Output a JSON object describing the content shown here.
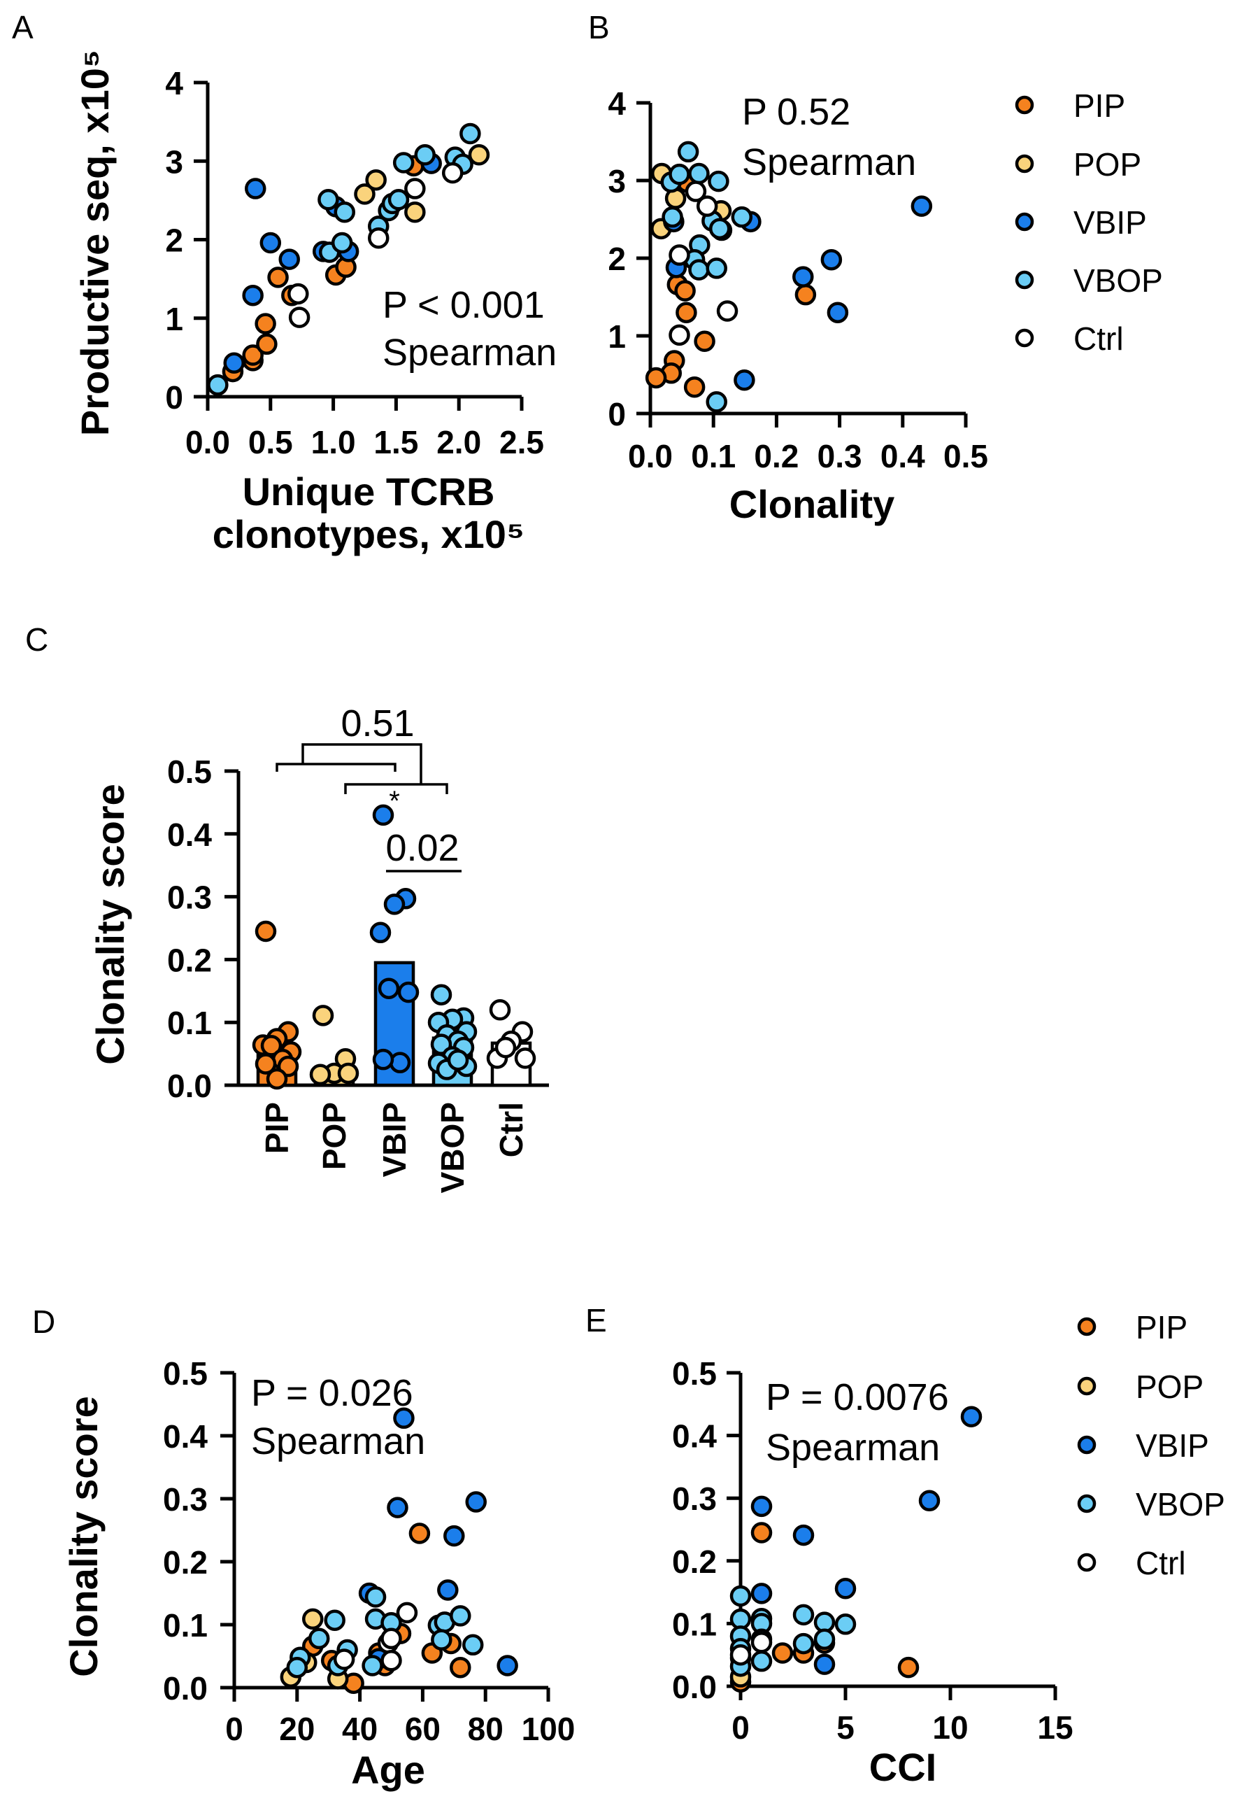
{
  "colors": {
    "PIP": "#F5821F",
    "POP": "#FAD37C",
    "VBIP": "#1B7EEB",
    "VBOP": "#6BCDF5",
    "Ctrl": "#FFFFFF"
  },
  "chart_data": [
    {
      "panel": "A",
      "type": "scatter",
      "xlabel": [
        "Unique TCRB",
        "clonotypes, x10⁵"
      ],
      "ylabel": "Productive seq, x10⁵",
      "xlim": [
        0,
        2.5
      ],
      "ylim": [
        0,
        4
      ],
      "xticks": [
        "0.0",
        "0.5",
        "1.0",
        "1.5",
        "2.0",
        "2.5"
      ],
      "yticks": [
        "0",
        "1",
        "2",
        "3",
        "4"
      ],
      "annotation": [
        "P < 0.001",
        "Spearman"
      ],
      "series": [
        {
          "name": "PIP",
          "points": [
            [
              0.2,
              0.32
            ],
            [
              0.36,
              0.46
            ],
            [
              0.36,
              0.53
            ],
            [
              0.46,
              0.93
            ],
            [
              0.47,
              0.67
            ],
            [
              0.56,
              1.52
            ],
            [
              0.67,
              1.29
            ],
            [
              1.02,
              1.55
            ],
            [
              1.1,
              1.65
            ],
            [
              1.64,
              2.94
            ]
          ]
        },
        {
          "name": "POP",
          "points": [
            [
              1.25,
              2.58
            ],
            [
              1.34,
              2.76
            ],
            [
              1.65,
              2.35
            ],
            [
              2.16,
              3.08
            ]
          ]
        },
        {
          "name": "VBIP",
          "points": [
            [
              0.21,
              0.43
            ],
            [
              0.38,
              2.65
            ],
            [
              0.36,
              1.29
            ],
            [
              0.5,
              1.96
            ],
            [
              0.65,
              1.75
            ],
            [
              0.92,
              1.85
            ],
            [
              1.02,
              2.42
            ],
            [
              1.12,
              1.85
            ],
            [
              1.78,
              2.97
            ]
          ]
        },
        {
          "name": "VBOP",
          "points": [
            [
              0.08,
              0.15
            ],
            [
              0.97,
              1.84
            ],
            [
              0.96,
              2.51
            ],
            [
              1.09,
              2.35
            ],
            [
              1.07,
              1.96
            ],
            [
              1.36,
              2.17
            ],
            [
              1.44,
              2.37
            ],
            [
              1.47,
              2.46
            ],
            [
              1.52,
              2.51
            ],
            [
              1.56,
              2.98
            ],
            [
              1.73,
              3.08
            ],
            [
              1.97,
              3.05
            ],
            [
              2.03,
              2.96
            ],
            [
              2.09,
              3.35
            ]
          ]
        },
        {
          "name": "Ctrl",
          "points": [
            [
              0.72,
              1.31
            ],
            [
              0.73,
              1.01
            ],
            [
              1.36,
              2.02
            ],
            [
              1.65,
              2.65
            ],
            [
              1.95,
              2.85
            ]
          ]
        }
      ]
    },
    {
      "panel": "B",
      "type": "scatter",
      "xlabel": [
        "Clonality"
      ],
      "ylabel": "",
      "xlim": [
        0,
        0.5
      ],
      "ylim": [
        0,
        4
      ],
      "xticks": [
        "0.0",
        "0.1",
        "0.2",
        "0.3",
        "0.4",
        "0.5"
      ],
      "yticks": [
        "0",
        "1",
        "2",
        "3",
        "4"
      ],
      "annotation": [
        "P 0.52",
        "Spearman"
      ],
      "legend": {
        "placement": "right",
        "items": [
          "PIP",
          "POP",
          "VBIP",
          "VBOP",
          "Ctrl"
        ]
      },
      "series": [
        {
          "name": "PIP",
          "points": [
            [
              0.058,
              2.98
            ],
            [
              0.043,
              1.66
            ],
            [
              0.055,
              1.58
            ],
            [
              0.057,
              1.3
            ],
            [
              0.086,
              0.93
            ],
            [
              0.038,
              0.68
            ],
            [
              0.033,
              0.52
            ],
            [
              0.009,
              0.46
            ],
            [
              0.07,
              0.34
            ],
            [
              0.246,
              1.53
            ]
          ]
        },
        {
          "name": "POP",
          "points": [
            [
              0.018,
              3.09
            ],
            [
              0.04,
              2.77
            ],
            [
              0.112,
              2.61
            ],
            [
              0.017,
              2.38
            ]
          ]
        },
        {
          "name": "VBIP",
          "points": [
            [
              0.159,
              2.47
            ],
            [
              0.037,
              2.47
            ],
            [
              0.041,
              1.88
            ],
            [
              0.149,
              0.43
            ],
            [
              0.43,
              2.67
            ],
            [
              0.287,
              1.98
            ],
            [
              0.242,
              1.76
            ],
            [
              0.297,
              1.3
            ],
            [
              0.113,
              2.36
            ]
          ]
        },
        {
          "name": "VBOP",
          "points": [
            [
              0.033,
              2.98
            ],
            [
              0.046,
              3.08
            ],
            [
              0.06,
              3.37
            ],
            [
              0.077,
              3.09
            ],
            [
              0.108,
              2.99
            ],
            [
              0.098,
              2.48
            ],
            [
              0.11,
              2.38
            ],
            [
              0.145,
              2.53
            ],
            [
              0.035,
              2.53
            ],
            [
              0.078,
              2.17
            ],
            [
              0.07,
              1.98
            ],
            [
              0.077,
              1.85
            ],
            [
              0.105,
              1.87
            ],
            [
              0.105,
              0.15
            ]
          ]
        },
        {
          "name": "Ctrl",
          "points": [
            [
              0.072,
              2.86
            ],
            [
              0.09,
              2.67
            ],
            [
              0.046,
              2.04
            ],
            [
              0.122,
              1.32
            ],
            [
              0.046,
              1.01
            ]
          ]
        }
      ]
    },
    {
      "panel": "C",
      "type": "bar",
      "ylabel": "Clonality score",
      "ylim": [
        0,
        0.5
      ],
      "yticks": [
        "0.0",
        "0.1",
        "0.2",
        "0.3",
        "0.4",
        "0.5"
      ],
      "categories": [
        "PIP",
        "POP",
        "VBIP",
        "VBOP",
        "Ctrl"
      ],
      "values": [
        0.06,
        0.02,
        0.195,
        0.075,
        0.067
      ],
      "points": [
        [
          0.245,
          0.085,
          0.074,
          0.064,
          0.053,
          0.063,
          0.041,
          0.034,
          0.03,
          0.01
        ],
        [
          0.111,
          0.042,
          0.019,
          0.017,
          0.019
        ],
        [
          0.43,
          0.297,
          0.288,
          0.243,
          0.148,
          0.154,
          0.036,
          0.041
        ],
        [
          0.144,
          0.107,
          0.105,
          0.1,
          0.085,
          0.08,
          0.07,
          0.065,
          0.06,
          0.045,
          0.035,
          0.03,
          0.025,
          0.04
        ],
        [
          0.12,
          0.085,
          0.07,
          0.043,
          0.043,
          0.06
        ]
      ],
      "comparisons": [
        {
          "label": "0.51",
          "between": "PIP+POP vs VBIP+VBOP"
        },
        {
          "label": "*",
          "between": "VBIP outlier"
        },
        {
          "label": "0.02",
          "between": "VBIP vs VBOP"
        }
      ]
    },
    {
      "panel": "D",
      "type": "scatter",
      "xlabel": [
        "Age"
      ],
      "ylabel": "Clonality score",
      "xlim": [
        0,
        100
      ],
      "ylim": [
        0,
        0.5
      ],
      "xticks": [
        "0",
        "20",
        "40",
        "60",
        "80",
        "100"
      ],
      "yticks": [
        "0.0",
        "0.1",
        "0.2",
        "0.3",
        "0.4",
        "0.5"
      ],
      "annotation": [
        "P = 0.026",
        "Spearman"
      ],
      "series": [
        {
          "name": "PIP",
          "points": [
            [
              59,
              0.245
            ],
            [
              25,
              0.066
            ],
            [
              31,
              0.043
            ],
            [
              38,
              0.007
            ],
            [
              46,
              0.055
            ],
            [
              53,
              0.086
            ],
            [
              63,
              0.055
            ],
            [
              69,
              0.07
            ],
            [
              72,
              0.032
            ],
            [
              48,
              0.035
            ]
          ]
        },
        {
          "name": "POP",
          "points": [
            [
              25,
              0.109
            ],
            [
              23,
              0.04
            ],
            [
              18,
              0.017
            ],
            [
              33,
              0.014
            ]
          ]
        },
        {
          "name": "VBIP",
          "points": [
            [
              54,
              0.428
            ],
            [
              52,
              0.286
            ],
            [
              77,
              0.295
            ],
            [
              70,
              0.241
            ],
            [
              68,
              0.155
            ],
            [
              87,
              0.035
            ],
            [
              43,
              0.15
            ],
            [
              46,
              0.046
            ]
          ]
        },
        {
          "name": "VBOP",
          "points": [
            [
              21,
              0.048
            ],
            [
              20,
              0.032
            ],
            [
              27,
              0.078
            ],
            [
              32,
              0.107
            ],
            [
              36,
              0.06
            ],
            [
              33,
              0.035
            ],
            [
              45,
              0.144
            ],
            [
              45,
              0.109
            ],
            [
              50,
              0.103
            ],
            [
              44,
              0.035
            ],
            [
              65,
              0.099
            ],
            [
              67,
              0.104
            ],
            [
              66,
              0.076
            ],
            [
              72,
              0.114
            ],
            [
              76,
              0.068
            ]
          ]
        },
        {
          "name": "Ctrl",
          "points": [
            [
              55,
              0.119
            ],
            [
              49,
              0.071
            ],
            [
              50,
              0.043
            ],
            [
              35,
              0.045
            ],
            [
              50,
              0.078
            ]
          ]
        }
      ]
    },
    {
      "panel": "E",
      "type": "scatter",
      "xlabel": [
        "CCI"
      ],
      "ylabel": "",
      "xlim": [
        0,
        15
      ],
      "ylim": [
        0,
        0.5
      ],
      "xticks": [
        "0",
        "5",
        "10",
        "15"
      ],
      "yticks": [
        "0.0",
        "0.1",
        "0.2",
        "0.3",
        "0.4",
        "0.5"
      ],
      "annotation": [
        "P = 0.0076",
        "Spearman"
      ],
      "legend": {
        "placement": "right",
        "items": [
          "PIP",
          "POP",
          "VBIP",
          "VBOP",
          "Ctrl"
        ]
      },
      "series": [
        {
          "name": "PIP",
          "points": [
            [
              1,
              0.245
            ],
            [
              2,
              0.053
            ],
            [
              3,
              0.053
            ],
            [
              8,
              0.03
            ],
            [
              4,
              0.069
            ],
            [
              0,
              0.007
            ]
          ]
        },
        {
          "name": "POP",
          "points": [
            [
              0,
              0.015
            ]
          ]
        },
        {
          "name": "VBIP",
          "points": [
            [
              11,
              0.43
            ],
            [
              9,
              0.296
            ],
            [
              1,
              0.287
            ],
            [
              3,
              0.241
            ],
            [
              1,
              0.148
            ],
            [
              5,
              0.156
            ],
            [
              4,
              0.035
            ]
          ]
        },
        {
          "name": "VBOP",
          "points": [
            [
              0,
              0.144
            ],
            [
              0,
              0.107
            ],
            [
              0,
              0.08
            ],
            [
              0,
              0.06
            ],
            [
              0,
              0.045
            ],
            [
              0,
              0.032
            ],
            [
              1,
              0.108
            ],
            [
              1,
              0.1
            ],
            [
              1,
              0.075
            ],
            [
              1,
              0.04
            ],
            [
              3,
              0.114
            ],
            [
              3,
              0.068
            ],
            [
              4,
              0.102
            ],
            [
              4,
              0.075
            ],
            [
              5,
              0.099
            ]
          ]
        },
        {
          "name": "Ctrl",
          "points": [
            [
              0,
              0.05
            ],
            [
              1,
              0.07
            ]
          ]
        }
      ]
    }
  ]
}
